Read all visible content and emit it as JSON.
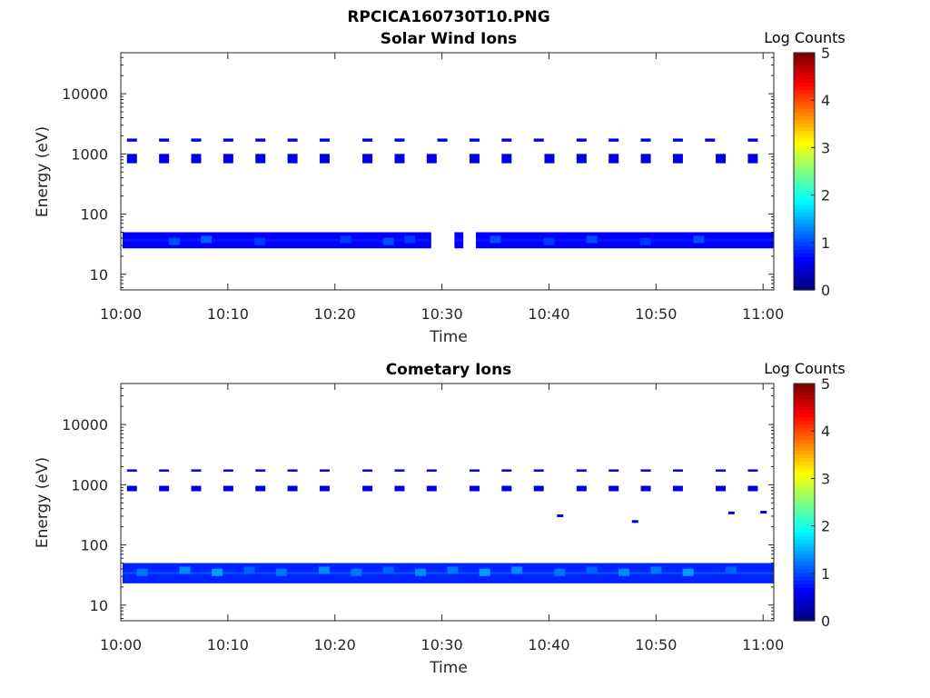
{
  "figure_title": "RPCICA160730T10.PNG",
  "colors": {
    "axis": "#262626",
    "background": "#ffffff"
  },
  "chart_data": [
    {
      "type": "heatmap",
      "title": "Solar Wind Ions",
      "xlabel": "Time",
      "ylabel": "Energy (eV)",
      "y_scale": "log",
      "xlim": [
        "10:00",
        "11:01"
      ],
      "ylim": [
        5.5,
        48000
      ],
      "xticks": [
        "10:00",
        "10:10",
        "10:20",
        "10:30",
        "10:40",
        "10:50",
        "11:00"
      ],
      "yticks": [
        "10",
        "100",
        "1000",
        "10000"
      ],
      "colorbar": {
        "label": "Log Counts",
        "range": [
          0,
          5
        ],
        "ticks": [
          "0",
          "1",
          "2",
          "3",
          "4",
          "5"
        ]
      },
      "bands": [
        {
          "energy_range": [
            1600,
            1800
          ],
          "value": 0.5,
          "times": [
            "10:01",
            "10:04",
            "10:07",
            "10:10",
            "10:13",
            "10:16",
            "10:19",
            "10:23",
            "10:26",
            "10:30",
            "10:33",
            "10:36",
            "10:39",
            "10:43",
            "10:46",
            "10:49",
            "10:52",
            "10:55",
            "10:59"
          ]
        },
        {
          "energy_range": [
            700,
            1000
          ],
          "value": 0.5,
          "times": [
            "10:01",
            "10:04",
            "10:07",
            "10:10",
            "10:13",
            "10:16",
            "10:19",
            "10:23",
            "10:26",
            "10:29",
            "10:33",
            "10:36",
            "10:40",
            "10:43",
            "10:46",
            "10:49",
            "10:52",
            "10:56",
            "10:59"
          ]
        },
        {
          "energy_range": [
            27,
            50
          ],
          "value": 0.6,
          "segments": [
            [
              "10:00",
              "10:29"
            ],
            [
              "10:31",
              "10:32"
            ],
            [
              "10:33",
              "11:01"
            ]
          ]
        }
      ],
      "hot_spots": [
        {
          "time": "10:05",
          "energy": 35,
          "value": 1.0
        },
        {
          "time": "10:08",
          "energy": 38,
          "value": 1.1
        },
        {
          "time": "10:13",
          "energy": 35,
          "value": 0.9
        },
        {
          "time": "10:21",
          "energy": 38,
          "value": 0.9
        },
        {
          "time": "10:25",
          "energy": 35,
          "value": 1.0
        },
        {
          "time": "10:27",
          "energy": 38,
          "value": 0.9
        },
        {
          "time": "10:35",
          "energy": 38,
          "value": 1.0
        },
        {
          "time": "10:40",
          "energy": 35,
          "value": 0.9
        },
        {
          "time": "10:44",
          "energy": 38,
          "value": 1.0
        },
        {
          "time": "10:49",
          "energy": 35,
          "value": 0.9
        },
        {
          "time": "10:54",
          "energy": 38,
          "value": 1.0
        }
      ]
    },
    {
      "type": "heatmap",
      "title": "Cometary Ions",
      "xlabel": "Time",
      "ylabel": "Energy (eV)",
      "y_scale": "log",
      "xlim": [
        "10:00",
        "11:01"
      ],
      "ylim": [
        5.5,
        48000
      ],
      "xticks": [
        "10:00",
        "10:10",
        "10:20",
        "10:30",
        "10:40",
        "10:50",
        "11:00"
      ],
      "yticks": [
        "10",
        "100",
        "1000",
        "10000"
      ],
      "colorbar": {
        "label": "Log Counts",
        "range": [
          0,
          5
        ],
        "ticks": [
          "0",
          "1",
          "2",
          "3",
          "4",
          "5"
        ]
      },
      "bands": [
        {
          "energy_range": [
            1650,
            1800
          ],
          "value": 0.5,
          "times": [
            "10:01",
            "10:04",
            "10:07",
            "10:10",
            "10:13",
            "10:16",
            "10:19",
            "10:23",
            "10:26",
            "10:29",
            "10:33",
            "10:36",
            "10:39",
            "10:43",
            "10:46",
            "10:49",
            "10:52",
            "10:56",
            "10:59"
          ]
        },
        {
          "energy_range": [
            780,
            960
          ],
          "value": 0.5,
          "times": [
            "10:01",
            "10:04",
            "10:07",
            "10:10",
            "10:13",
            "10:16",
            "10:19",
            "10:23",
            "10:26",
            "10:29",
            "10:33",
            "10:36",
            "10:39",
            "10:43",
            "10:46",
            "10:49",
            "10:52",
            "10:56",
            "10:59"
          ]
        },
        {
          "energy_range": [
            23,
            50
          ],
          "value": 0.8,
          "segments": [
            [
              "10:00",
              "11:01"
            ]
          ]
        }
      ],
      "specks": [
        {
          "time": "10:41",
          "energy": 305
        },
        {
          "time": "10:48",
          "energy": 245
        },
        {
          "time": "10:57",
          "energy": 340
        },
        {
          "time": "11:00",
          "energy": 350
        }
      ],
      "hot_spots": [
        {
          "time": "10:02",
          "energy": 35,
          "value": 1.2
        },
        {
          "time": "10:06",
          "energy": 38,
          "value": 1.3
        },
        {
          "time": "10:09",
          "energy": 35,
          "value": 1.4
        },
        {
          "time": "10:12",
          "energy": 38,
          "value": 1.1
        },
        {
          "time": "10:15",
          "energy": 35,
          "value": 1.2
        },
        {
          "time": "10:19",
          "energy": 38,
          "value": 1.3
        },
        {
          "time": "10:22",
          "energy": 35,
          "value": 1.2
        },
        {
          "time": "10:25",
          "energy": 38,
          "value": 1.1
        },
        {
          "time": "10:28",
          "energy": 35,
          "value": 1.3
        },
        {
          "time": "10:31",
          "energy": 38,
          "value": 1.2
        },
        {
          "time": "10:34",
          "energy": 35,
          "value": 1.4
        },
        {
          "time": "10:37",
          "energy": 38,
          "value": 1.3
        },
        {
          "time": "10:41",
          "energy": 35,
          "value": 1.2
        },
        {
          "time": "10:44",
          "energy": 38,
          "value": 1.1
        },
        {
          "time": "10:47",
          "energy": 35,
          "value": 1.3
        },
        {
          "time": "10:50",
          "energy": 38,
          "value": 1.2
        },
        {
          "time": "10:53",
          "energy": 35,
          "value": 1.4
        },
        {
          "time": "10:57",
          "energy": 38,
          "value": 1.1
        }
      ]
    }
  ]
}
